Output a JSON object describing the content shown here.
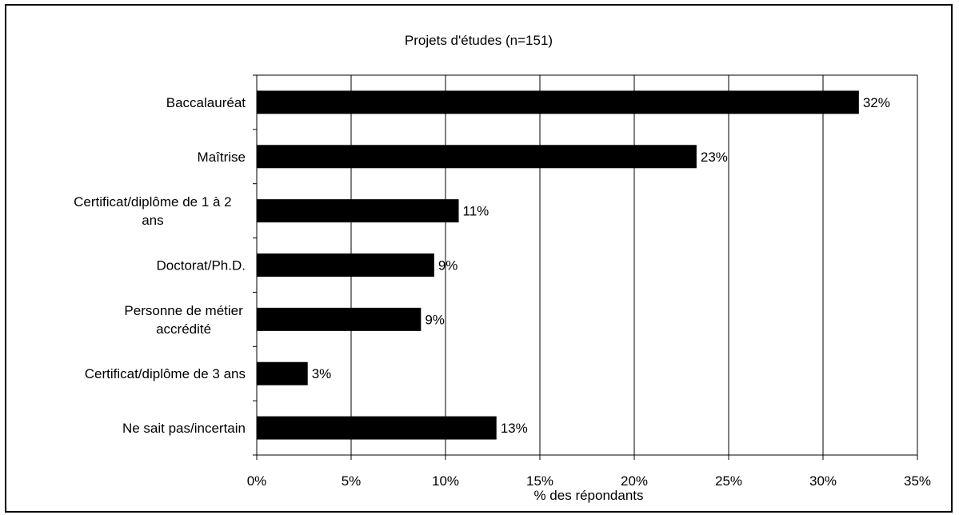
{
  "chart_data": {
    "type": "bar",
    "orientation": "horizontal",
    "title": "Projets d'études (n=151)",
    "xlabel": "% des répondants",
    "ylabel": "",
    "categories": [
      [
        "Baccalauréat"
      ],
      [
        "Maîtrise"
      ],
      [
        "Certificat/diplôme de 1 à 2",
        "ans"
      ],
      [
        "Doctorat/Ph.D."
      ],
      [
        "Personne de métier",
        "accrédité"
      ],
      [
        "Certificat/diplôme de 3 ans"
      ],
      [
        "Ne sait pas/incertain"
      ]
    ],
    "values": [
      31.9,
      23.3,
      10.7,
      9.4,
      8.7,
      2.7,
      12.7
    ],
    "data_labels": [
      "32%",
      "23%",
      "11%",
      "9%",
      "9%",
      "3%",
      "13%"
    ],
    "xlim": [
      0,
      35
    ],
    "xticks": [
      0,
      5,
      10,
      15,
      20,
      25,
      30,
      35
    ],
    "xtick_labels": [
      "0%",
      "5%",
      "10%",
      "15%",
      "20%",
      "25%",
      "30%",
      "35%"
    ],
    "grid": "vertical",
    "legend": "none",
    "bar_color": "#000000"
  }
}
